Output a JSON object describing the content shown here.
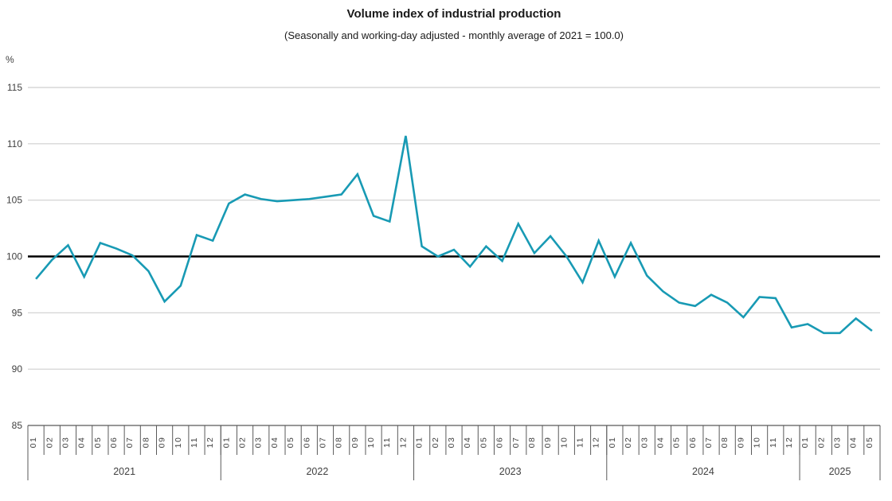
{
  "chart_data": {
    "type": "line",
    "title": "Volume index of industrial production",
    "subtitle": "(Seasonally and working-day adjusted - monthly average of 2021 = 100.0)",
    "ylabel": "%",
    "xlabel": "",
    "ylim": [
      85,
      115
    ],
    "yticks": [
      115,
      110,
      105,
      100,
      95,
      90,
      85
    ],
    "baseline": 100,
    "grid": true,
    "legend": "none",
    "colors": {
      "line": "#189AB4",
      "grid": "#CFCFCF",
      "axis": "#595959",
      "baseline": "#000000",
      "text": "#404040"
    },
    "years": [
      {
        "year": "2021",
        "months": [
          "01",
          "02",
          "03",
          "04",
          "05",
          "06",
          "07",
          "08",
          "09",
          "10",
          "11",
          "12"
        ]
      },
      {
        "year": "2022",
        "months": [
          "01",
          "02",
          "03",
          "04",
          "05",
          "06",
          "07",
          "08",
          "09",
          "10",
          "11",
          "12"
        ]
      },
      {
        "year": "2023",
        "months": [
          "01",
          "02",
          "03",
          "04",
          "05",
          "06",
          "07",
          "08",
          "09",
          "10",
          "11",
          "12"
        ]
      },
      {
        "year": "2024",
        "months": [
          "01",
          "02",
          "03",
          "04",
          "05",
          "06",
          "07",
          "08",
          "09",
          "10",
          "11",
          "12"
        ]
      },
      {
        "year": "2025",
        "months": [
          "01",
          "02",
          "03",
          "04",
          "05"
        ]
      }
    ],
    "series": [
      {
        "name": "Volume index of industrial production",
        "values": [
          98.0,
          99.7,
          101.0,
          98.2,
          101.2,
          100.7,
          100.1,
          98.7,
          96.0,
          97.4,
          101.9,
          101.4,
          104.7,
          105.5,
          105.1,
          104.9,
          105.0,
          105.1,
          105.3,
          105.5,
          107.3,
          103.6,
          103.1,
          110.7,
          100.9,
          100.0,
          100.6,
          99.1,
          100.9,
          99.6,
          102.9,
          100.3,
          101.8,
          100.0,
          97.7,
          101.4,
          98.2,
          101.2,
          98.3,
          96.9,
          95.9,
          95.6,
          96.6,
          95.9,
          94.6,
          96.4,
          96.3,
          93.7,
          94.0,
          93.2,
          93.2,
          94.5,
          93.4
        ]
      }
    ]
  }
}
